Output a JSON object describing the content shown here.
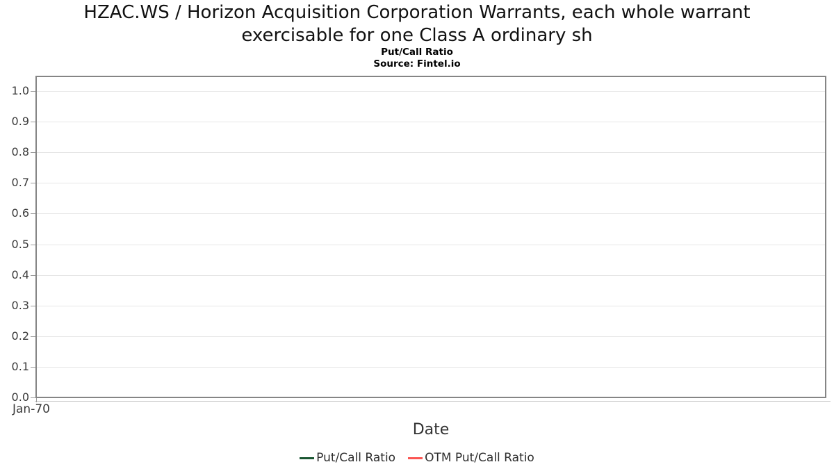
{
  "header": {
    "title": "HZAC.WS / Horizon Acquisition Corporation Warrants, each whole warrant exercisable for one Class A ordinary sh",
    "subtitle": "Put/Call Ratio",
    "source": "Source: Fintel.io"
  },
  "chart_data": {
    "type": "line",
    "title": "HZAC.WS / Horizon Acquisition Corporation Warrants, each whole warrant exercisable for one Class A ordinary sh",
    "subtitle": "Put/Call Ratio",
    "source": "Source: Fintel.io",
    "xlabel": "Date",
    "ylabel": "",
    "ylim": [
      0.0,
      1.0
    ],
    "yticks": [
      "1.0",
      "0.9",
      "0.8",
      "0.7",
      "0.6",
      "0.5",
      "0.4",
      "0.3",
      "0.2",
      "0.1",
      "0.0"
    ],
    "xticks": [
      "Jan-70"
    ],
    "grid": true,
    "legend_position": "bottom",
    "plot_area_empty": true,
    "series": [
      {
        "name": "Put/Call Ratio",
        "color": "#1a5632",
        "x": [],
        "values": []
      },
      {
        "name": "OTM Put/Call Ratio",
        "color": "#fb5552",
        "x": [],
        "values": []
      }
    ]
  }
}
